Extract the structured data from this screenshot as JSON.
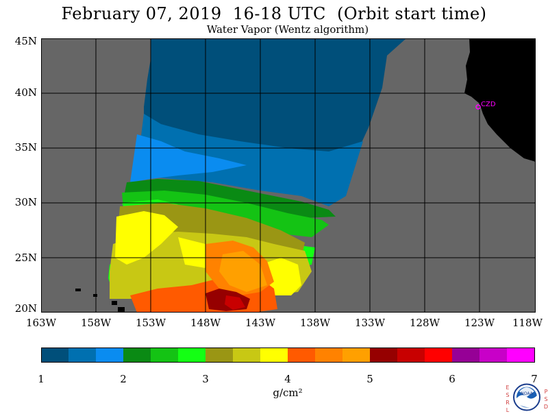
{
  "title": "February 07, 2019  16-18 UTC  (Orbit start time)",
  "subtitle": "Water Vapor (Wentz algorithm)",
  "latitude_labels": [
    "45N",
    "40N",
    "35N",
    "30N",
    "25N",
    "20N"
  ],
  "longitude_labels": [
    "163W",
    "158W",
    "153W",
    "148W",
    "143W",
    "138W",
    "133W",
    "128W",
    "123W",
    "118W"
  ],
  "station_label": "CZD",
  "colorbar": {
    "colors": [
      "#004f7a",
      "#0070b0",
      "#0a8cf0",
      "#0a8a14",
      "#14c314",
      "#14ff14",
      "#9a9614",
      "#c8c814",
      "#ffff00",
      "#ff5a00",
      "#ff8200",
      "#ffa000",
      "#960000",
      "#c80000",
      "#ff0000",
      "#960096",
      "#c800c8",
      "#ff00ff"
    ],
    "ticks": [
      "1",
      "2",
      "3",
      "4",
      "5",
      "6",
      "7"
    ],
    "units": "g/cm²"
  },
  "logo": {
    "name": "NOAA",
    "left_letters": [
      "E",
      "S",
      "R",
      "L"
    ],
    "right_letters": [
      "P",
      "S",
      "D"
    ]
  },
  "colors": {
    "no_data": "#666666",
    "land": "#000000",
    "grid": "#000000",
    "station": "#ff00ff"
  }
}
